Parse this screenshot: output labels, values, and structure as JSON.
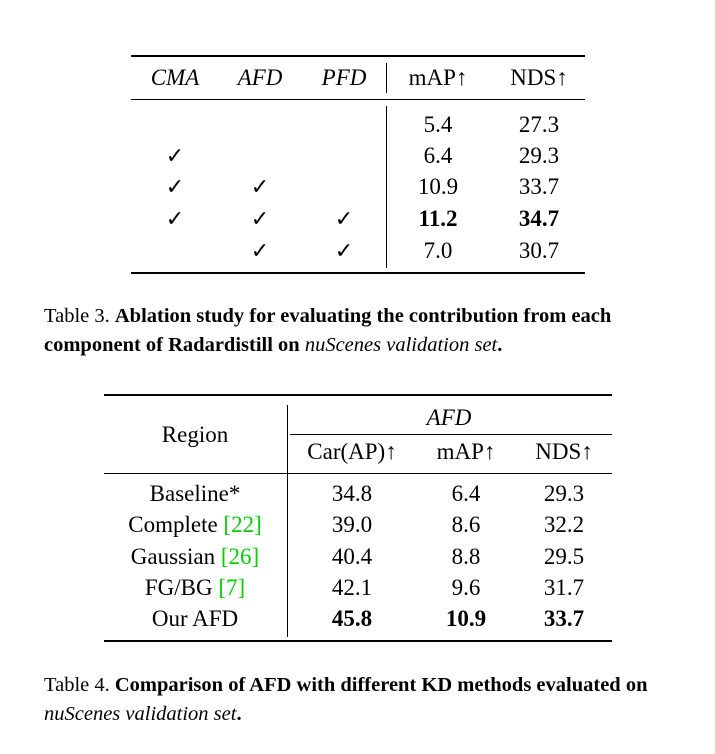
{
  "table3": {
    "headers": [
      "CMA",
      "AFD",
      "PFD",
      "mAP↑",
      "NDS↑"
    ],
    "check": "✓",
    "rows": [
      {
        "cma": "",
        "afd": "",
        "pfd": "",
        "map": "5.4",
        "nds": "27.3"
      },
      {
        "cma": "✓",
        "afd": "",
        "pfd": "",
        "map": "6.4",
        "nds": "29.3"
      },
      {
        "cma": "✓",
        "afd": "✓",
        "pfd": "",
        "map": "10.9",
        "nds": "33.7"
      },
      {
        "cma": "✓",
        "afd": "✓",
        "pfd": "✓",
        "map": "11.2",
        "nds": "34.7"
      },
      {
        "cma": "",
        "afd": "✓",
        "pfd": "✓",
        "map": "7.0",
        "nds": "30.7"
      }
    ],
    "caption": {
      "label": "Table 3.",
      "bold_text": "Ablation study for evaluating the contribution from each component of Radardistill on",
      "italic_text": "nuScenes validation set",
      "end": "."
    }
  },
  "table4": {
    "region_header": "Region",
    "group_header": "AFD",
    "sub_headers": [
      "Car(AP)↑",
      "mAP↑",
      "NDS↑"
    ],
    "rows": [
      {
        "region": "Baseline*",
        "ref": "",
        "car": "34.8",
        "map": "6.4",
        "nds": "29.3"
      },
      {
        "region": "Complete",
        "ref": "[22]",
        "car": "39.0",
        "map": "8.6",
        "nds": "32.2"
      },
      {
        "region": "Gaussian",
        "ref": "[26]",
        "car": "40.4",
        "map": "8.8",
        "nds": "29.5"
      },
      {
        "region": "FG/BG",
        "ref": "[7]",
        "car": "42.1",
        "map": "9.6",
        "nds": "31.7"
      },
      {
        "region": "Our AFD",
        "ref": "",
        "car": "45.8",
        "map": "10.9",
        "nds": "33.7"
      }
    ],
    "caption": {
      "label": "Table 4.",
      "bold_text": "Comparison of AFD with different KD methods evaluated on",
      "italic_text": "nuScenes validation set",
      "end": "."
    }
  }
}
